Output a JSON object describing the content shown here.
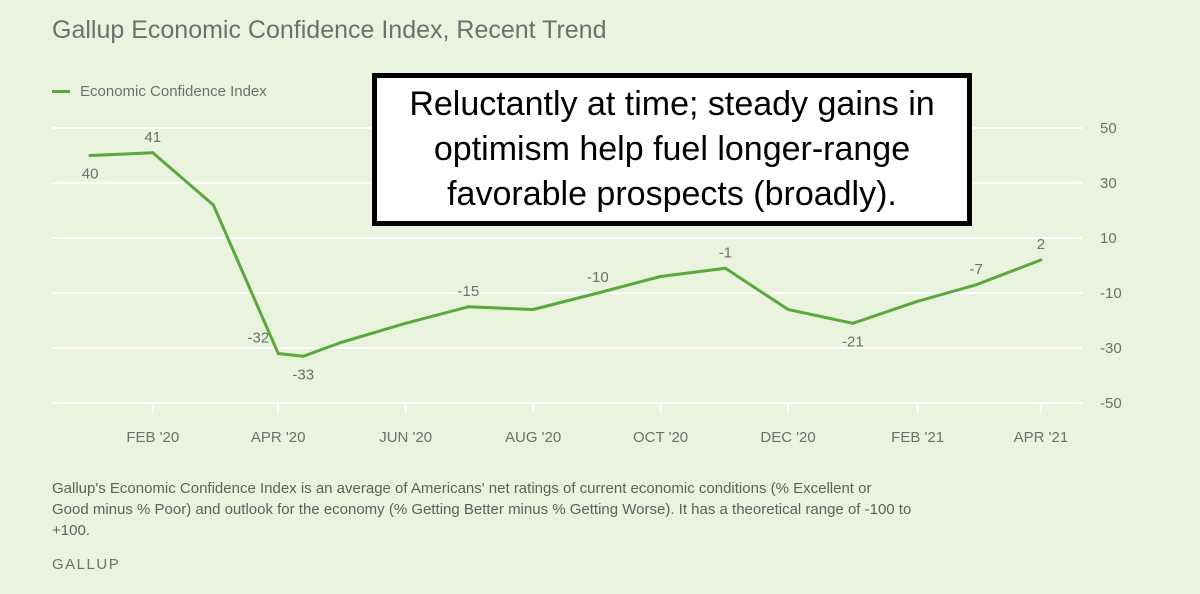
{
  "title": "Gallup Economic Confidence Index, Recent Trend",
  "callout": "Reluctantly at time; steady gains in optimism help fuel longer-range favorable prospects (broadly).",
  "note": "Gallup's Economic Confidence Index is an average of Americans' net ratings of current economic conditions (% Excellent or Good minus % Poor) and outlook for the economy (% Getting Better minus % Getting Worse). It has a theoretical range of -100 to +100.",
  "source": "GALLUP",
  "colors": {
    "line": "#5aa83e",
    "grid": "#ffffff",
    "text": "#6f6f6f"
  },
  "chart_data": {
    "type": "line",
    "title": "Gallup Economic Confidence Index, Recent Trend",
    "xlabel": "",
    "ylabel": "",
    "ylim": [
      -50,
      50
    ],
    "y_axis_position": "right",
    "yticks": [
      50,
      30,
      10,
      -10,
      -30,
      -50
    ],
    "grid": true,
    "legend": "top-left",
    "x_tick_labels": [
      "FEB '20",
      "APR '20",
      "JUN '20",
      "AUG '20",
      "OCT '20",
      "DEC '20",
      "FEB '21",
      "APR '21"
    ],
    "series": [
      {
        "name": "Economic Confidence Index",
        "points": [
          {
            "x": "2020-01-02",
            "y": 40,
            "label": "40"
          },
          {
            "x": "2020-02-01",
            "y": 41,
            "label": "41"
          },
          {
            "x": "2020-03-01",
            "y": 22
          },
          {
            "x": "2020-04-01",
            "y": -32,
            "label": "-32"
          },
          {
            "x": "2020-04-13",
            "y": -33,
            "label": "-33"
          },
          {
            "x": "2020-05-01",
            "y": -28
          },
          {
            "x": "2020-06-01",
            "y": -21
          },
          {
            "x": "2020-07-01",
            "y": -15,
            "label": "-15"
          },
          {
            "x": "2020-08-01",
            "y": -16
          },
          {
            "x": "2020-09-01",
            "y": -10,
            "label": "-10"
          },
          {
            "x": "2020-10-01",
            "y": -4
          },
          {
            "x": "2020-11-01",
            "y": -1,
            "label": "-1"
          },
          {
            "x": "2020-12-01",
            "y": -16
          },
          {
            "x": "2021-01-01",
            "y": -21,
            "label": "-21"
          },
          {
            "x": "2021-02-01",
            "y": -13
          },
          {
            "x": "2021-03-01",
            "y": -7,
            "label": "-7"
          },
          {
            "x": "2021-04-01",
            "y": 2,
            "label": "2"
          }
        ]
      }
    ]
  }
}
